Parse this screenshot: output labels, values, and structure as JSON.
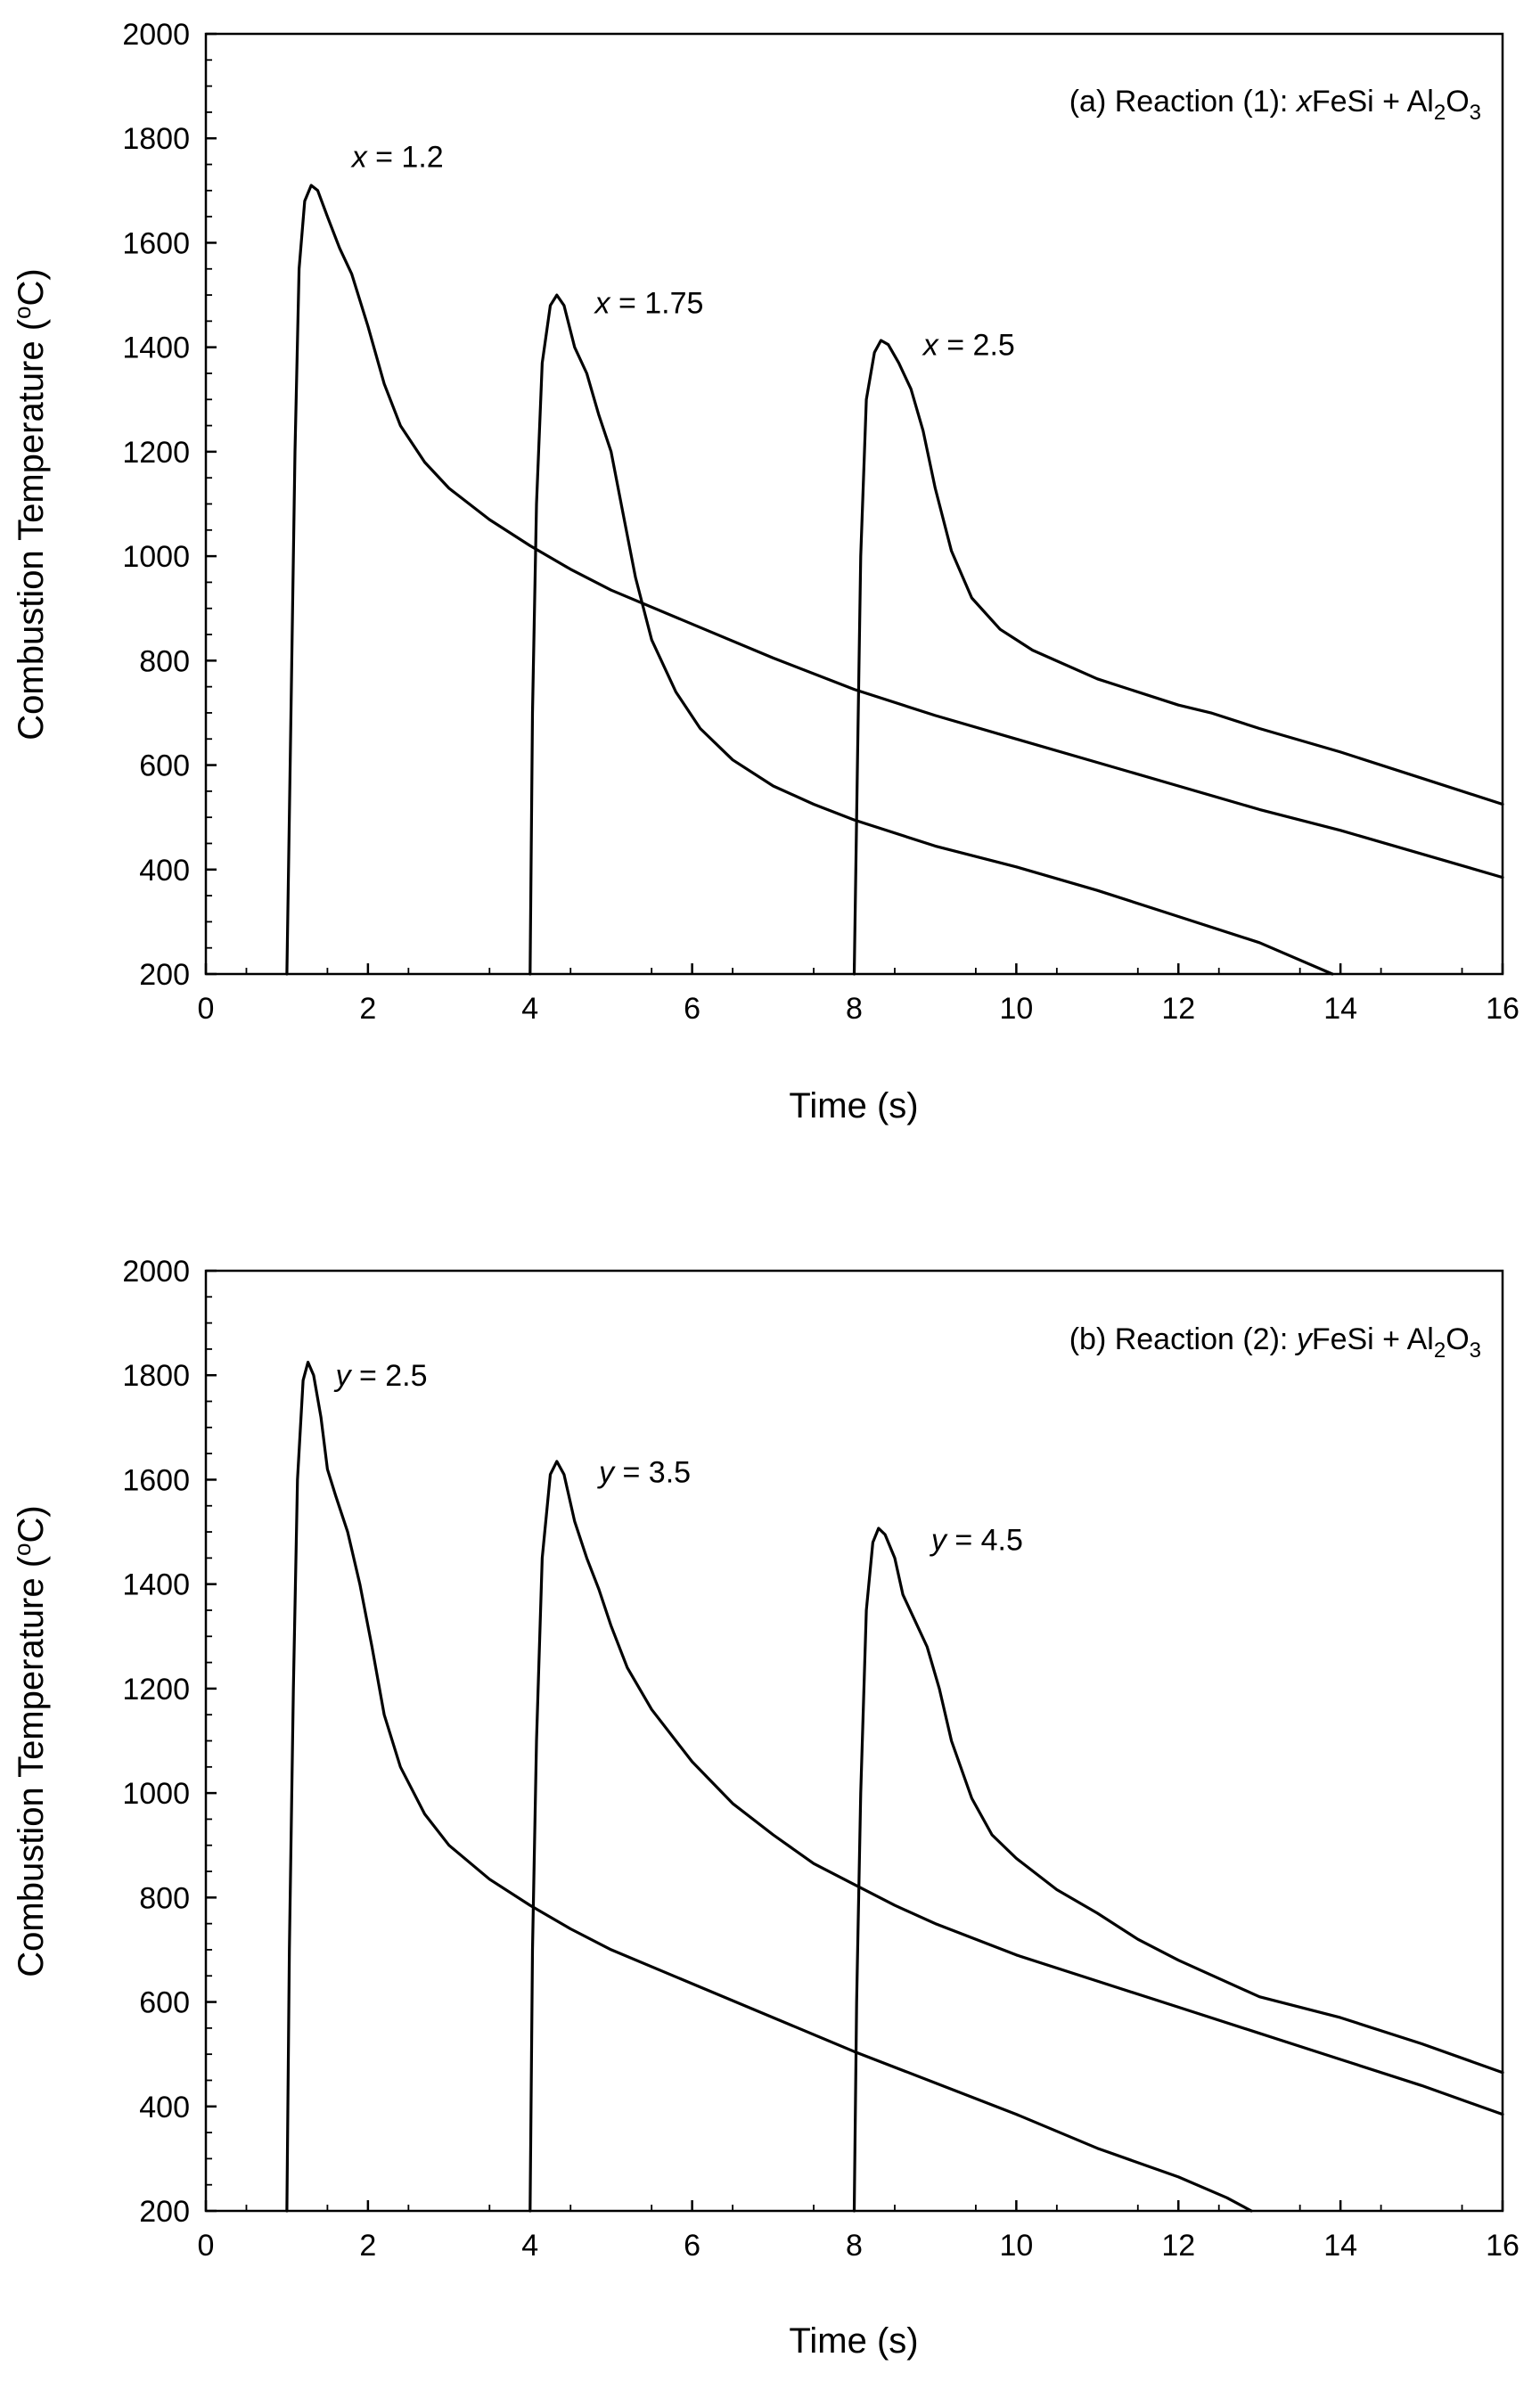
{
  "chart_data": [
    {
      "type": "line",
      "panel_label": "(a) Reaction (1): ",
      "formula_var": "x",
      "formula_rest": "FeSi + Al",
      "formula_sub1": "2",
      "formula_mid": "O",
      "formula_sub2": "3",
      "xlabel": "Time (s)",
      "ylabel_main": "Combustion Temperature (",
      "ylabel_sup": "o",
      "ylabel_end": "C)",
      "xlim": [
        0,
        16
      ],
      "ylim": [
        200,
        2000
      ],
      "xticks": [
        "0",
        "2",
        "4",
        "6",
        "8",
        "10",
        "12",
        "14",
        "16"
      ],
      "yticks": [
        "200",
        "400",
        "600",
        "800",
        "1000",
        "1200",
        "1400",
        "1600",
        "1800",
        "2000"
      ],
      "series": [
        {
          "name": "x = 1.2",
          "label_var": "x",
          "label_rest": " = 1.2",
          "label_at": [
            1.8,
            1745
          ],
          "points": [
            [
              1.0,
              200
            ],
            [
              1.05,
              700
            ],
            [
              1.1,
              1200
            ],
            [
              1.15,
              1550
            ],
            [
              1.22,
              1680
            ],
            [
              1.3,
              1710
            ],
            [
              1.38,
              1700
            ],
            [
              1.5,
              1650
            ],
            [
              1.65,
              1590
            ],
            [
              1.8,
              1540
            ],
            [
              2.0,
              1440
            ],
            [
              2.2,
              1330
            ],
            [
              2.4,
              1250
            ],
            [
              2.7,
              1180
            ],
            [
              3.0,
              1130
            ],
            [
              3.5,
              1070
            ],
            [
              4.0,
              1020
            ],
            [
              4.5,
              975
            ],
            [
              5.0,
              935
            ],
            [
              6.0,
              870
            ],
            [
              7.0,
              805
            ],
            [
              8.0,
              745
            ],
            [
              9.0,
              695
            ],
            [
              10.0,
              650
            ],
            [
              11.0,
              605
            ],
            [
              12.0,
              560
            ],
            [
              13.0,
              515
            ],
            [
              14.0,
              475
            ],
            [
              15.0,
              430
            ],
            [
              16.0,
              385
            ]
          ]
        },
        {
          "name": "x = 1.75",
          "label_var": "x",
          "label_rest": " = 1.75",
          "label_at": [
            4.8,
            1465
          ],
          "points": [
            [
              4.0,
              200
            ],
            [
              4.03,
              700
            ],
            [
              4.08,
              1100
            ],
            [
              4.15,
              1370
            ],
            [
              4.25,
              1480
            ],
            [
              4.33,
              1500
            ],
            [
              4.42,
              1480
            ],
            [
              4.55,
              1400
            ],
            [
              4.7,
              1350
            ],
            [
              4.85,
              1270
            ],
            [
              5.0,
              1200
            ],
            [
              5.15,
              1080
            ],
            [
              5.3,
              960
            ],
            [
              5.5,
              840
            ],
            [
              5.8,
              740
            ],
            [
              6.1,
              670
            ],
            [
              6.5,
              610
            ],
            [
              7.0,
              560
            ],
            [
              7.5,
              525
            ],
            [
              8.0,
              495
            ],
            [
              9.0,
              445
            ],
            [
              10.0,
              405
            ],
            [
              11.0,
              360
            ],
            [
              12.0,
              310
            ],
            [
              13.0,
              260
            ],
            [
              13.9,
              200
            ]
          ]
        },
        {
          "name": "x = 2.5",
          "label_var": "x",
          "label_rest": " = 2.5",
          "label_at": [
            8.85,
            1385
          ],
          "points": [
            [
              8.0,
              200
            ],
            [
              8.04,
              600
            ],
            [
              8.08,
              1000
            ],
            [
              8.15,
              1300
            ],
            [
              8.25,
              1390
            ],
            [
              8.33,
              1413
            ],
            [
              8.42,
              1405
            ],
            [
              8.55,
              1370
            ],
            [
              8.7,
              1320
            ],
            [
              8.85,
              1240
            ],
            [
              9.0,
              1130
            ],
            [
              9.2,
              1010
            ],
            [
              9.45,
              920
            ],
            [
              9.8,
              860
            ],
            [
              10.2,
              820
            ],
            [
              11.0,
              765
            ],
            [
              12.0,
              715
            ],
            [
              12.4,
              700
            ],
            [
              13.0,
              670
            ],
            [
              14.0,
              625
            ],
            [
              15.0,
              575
            ],
            [
              16.0,
              525
            ]
          ]
        }
      ]
    },
    {
      "type": "line",
      "panel_label": "(b) Reaction (2): ",
      "formula_var": "y",
      "formula_rest": "FeSi + Al",
      "formula_sub1": "2",
      "formula_mid": "O",
      "formula_sub2": "3",
      "xlabel": "Time (s)",
      "ylabel_main": "Combustion Temperature (",
      "ylabel_sup": "o",
      "ylabel_end": "C)",
      "xlim": [
        0,
        16
      ],
      "ylim": [
        200,
        2000
      ],
      "xticks": [
        "0",
        "2",
        "4",
        "6",
        "8",
        "10",
        "12",
        "14",
        "16"
      ],
      "yticks": [
        "200",
        "400",
        "600",
        "800",
        "1000",
        "1200",
        "1400",
        "1600",
        "1800",
        "2000"
      ],
      "series": [
        {
          "name": "y = 2.5",
          "label_var": "y",
          "label_rest": " = 2.5",
          "label_at": [
            1.6,
            1780
          ],
          "points": [
            [
              1.0,
              200
            ],
            [
              1.03,
              700
            ],
            [
              1.08,
              1200
            ],
            [
              1.13,
              1600
            ],
            [
              1.2,
              1790
            ],
            [
              1.26,
              1825
            ],
            [
              1.33,
              1800
            ],
            [
              1.42,
              1720
            ],
            [
              1.5,
              1620
            ],
            [
              1.6,
              1570
            ],
            [
              1.75,
              1500
            ],
            [
              1.9,
              1400
            ],
            [
              2.05,
              1280
            ],
            [
              2.2,
              1150
            ],
            [
              2.4,
              1050
            ],
            [
              2.7,
              960
            ],
            [
              3.0,
              900
            ],
            [
              3.5,
              835
            ],
            [
              4.0,
              785
            ],
            [
              4.5,
              740
            ],
            [
              5.0,
              700
            ],
            [
              6.0,
              635
            ],
            [
              7.0,
              570
            ],
            [
              8.0,
              505
            ],
            [
              9.0,
              445
            ],
            [
              10.0,
              385
            ],
            [
              11.0,
              320
            ],
            [
              12.0,
              265
            ],
            [
              12.6,
              225
            ],
            [
              12.9,
              200
            ]
          ]
        },
        {
          "name": "y = 3.5",
          "label_var": "y",
          "label_rest": " = 3.5",
          "label_at": [
            4.85,
            1595
          ],
          "points": [
            [
              4.0,
              200
            ],
            [
              4.03,
              700
            ],
            [
              4.08,
              1100
            ],
            [
              4.15,
              1450
            ],
            [
              4.25,
              1610
            ],
            [
              4.33,
              1635
            ],
            [
              4.42,
              1610
            ],
            [
              4.55,
              1520
            ],
            [
              4.7,
              1450
            ],
            [
              4.85,
              1390
            ],
            [
              5.0,
              1320
            ],
            [
              5.2,
              1240
            ],
            [
              5.5,
              1160
            ],
            [
              6.0,
              1060
            ],
            [
              6.5,
              980
            ],
            [
              7.0,
              920
            ],
            [
              7.5,
              865
            ],
            [
              8.0,
              825
            ],
            [
              8.5,
              785
            ],
            [
              9.0,
              750
            ],
            [
              10.0,
              690
            ],
            [
              11.0,
              640
            ],
            [
              12.0,
              590
            ],
            [
              13.0,
              540
            ],
            [
              14.0,
              490
            ],
            [
              15.0,
              440
            ],
            [
              16.0,
              385
            ]
          ]
        },
        {
          "name": "y = 4.5",
          "label_var": "y",
          "label_rest": " = 4.5",
          "label_at": [
            8.95,
            1465
          ],
          "points": [
            [
              8.0,
              200
            ],
            [
              8.03,
              600
            ],
            [
              8.08,
              1000
            ],
            [
              8.15,
              1350
            ],
            [
              8.23,
              1480
            ],
            [
              8.3,
              1507
            ],
            [
              8.38,
              1495
            ],
            [
              8.5,
              1450
            ],
            [
              8.6,
              1380
            ],
            [
              8.75,
              1330
            ],
            [
              8.9,
              1280
            ],
            [
              9.05,
              1200
            ],
            [
              9.2,
              1100
            ],
            [
              9.45,
              990
            ],
            [
              9.7,
              920
            ],
            [
              10.0,
              875
            ],
            [
              10.5,
              815
            ],
            [
              11.0,
              770
            ],
            [
              11.5,
              720
            ],
            [
              12.0,
              680
            ],
            [
              12.5,
              645
            ],
            [
              13.0,
              610
            ],
            [
              14.0,
              570
            ],
            [
              15.0,
              520
            ],
            [
              16.0,
              465
            ]
          ]
        }
      ]
    }
  ]
}
